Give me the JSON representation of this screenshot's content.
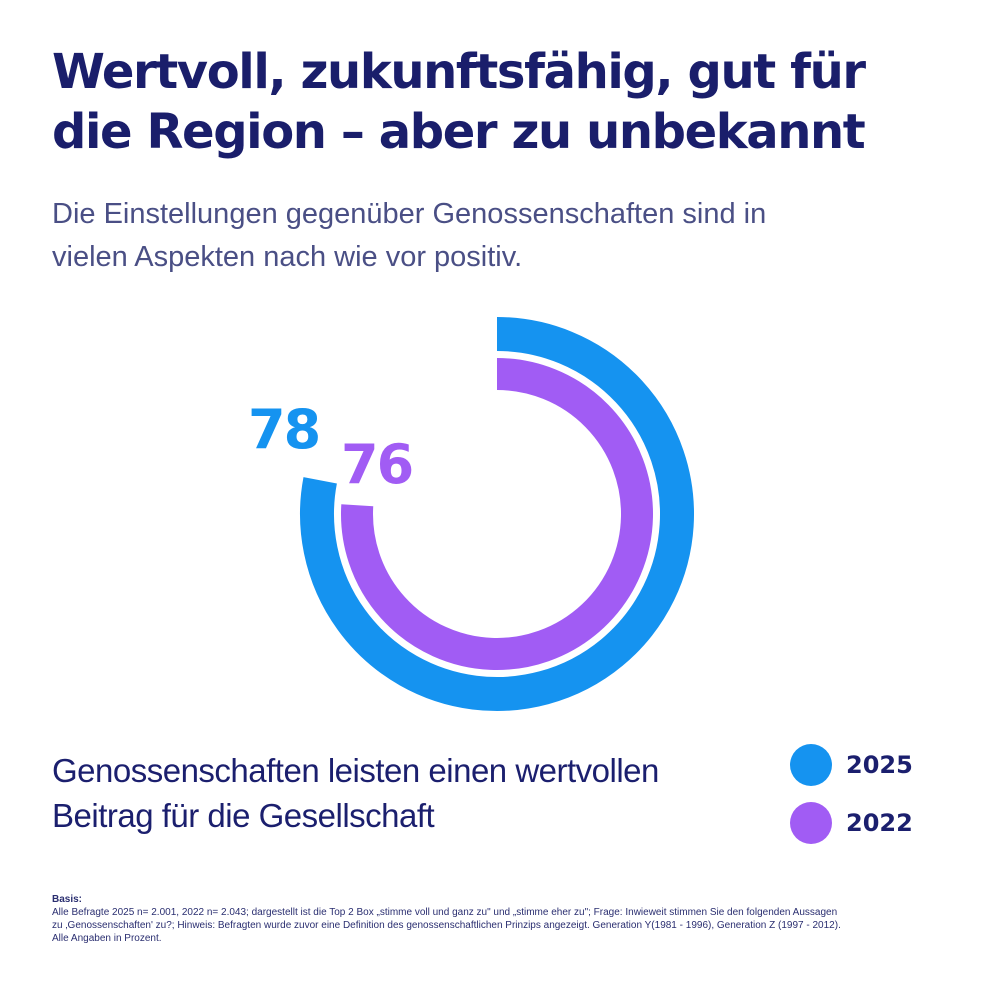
{
  "title": {
    "line1": "Wertvoll, zukunftsfähig, gut für",
    "line2": "die Region – aber zu unbekannt"
  },
  "subtitle": {
    "line1": "Die Einstellungen gegenüber Genossenschaften sind in",
    "line2": "vielen Aspekten nach wie vor positiv."
  },
  "colors": {
    "series_2025": "#1593f0",
    "series_2022": "#a15cf4"
  },
  "chart_data": {
    "type": "donut",
    "unit": "%",
    "max": 100,
    "series": [
      {
        "name": "2025",
        "value": 78,
        "label": "78"
      },
      {
        "name": "2022",
        "value": 76,
        "label": "76"
      }
    ],
    "caption": {
      "line1": "Genossenschaften leisten einen wertvollen",
      "line2": "Beitrag für die Gesellschaft"
    },
    "legend": [
      {
        "label": "2025"
      },
      {
        "label": "2022"
      }
    ]
  },
  "footnote": {
    "heading": "Basis:",
    "line1": "Alle Befragte 2025 n= 2.001, 2022 n= 2.043; dargestellt ist die Top 2 Box „stimme voll und ganz zu\" und „stimme eher zu\"; Frage: Inwieweit stimmen Sie den folgenden Aussagen",
    "line2": "zu ‚Genossenschaften' zu?; Hinweis: Befragten wurde zuvor eine Definition des genossenschaftlichen Prinzips angezeigt. Generation Y(1981 - 1996), Generation Z (1997 - 2012).",
    "line3": "Alle Angaben in Prozent."
  }
}
